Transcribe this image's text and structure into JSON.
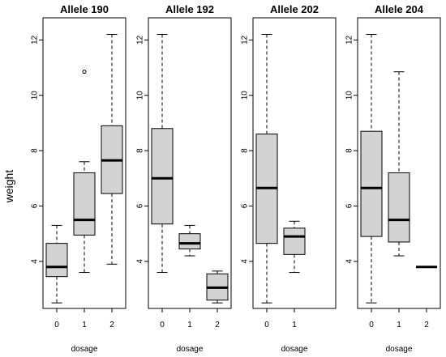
{
  "figure": {
    "ylabel": "weight"
  },
  "chart_data": [
    {
      "type": "boxplot",
      "title": "Allele 190",
      "xlabel": "dosage",
      "ylabel": "weight",
      "ylim": [
        2.3,
        12.8
      ],
      "yticks": [
        4,
        6,
        8,
        10,
        12
      ],
      "categories": [
        "0",
        "1",
        "2"
      ],
      "boxes": [
        {
          "category": "0",
          "min": 2.5,
          "q1": 3.45,
          "median": 3.8,
          "q3": 4.65,
          "max": 5.3,
          "outliers": []
        },
        {
          "category": "1",
          "min": 3.6,
          "q1": 4.95,
          "median": 5.5,
          "q3": 7.2,
          "max": 7.6,
          "outliers": [
            10.85
          ]
        },
        {
          "category": "2",
          "min": 3.9,
          "q1": 6.45,
          "median": 7.65,
          "q3": 8.9,
          "max": 12.2,
          "outliers": []
        }
      ]
    },
    {
      "type": "boxplot",
      "title": "Allele 192",
      "xlabel": "dosage",
      "ylabel": "",
      "ylim": [
        2.3,
        12.8
      ],
      "yticks": [
        4,
        6,
        8,
        10,
        12
      ],
      "categories": [
        "0",
        "1",
        "2"
      ],
      "boxes": [
        {
          "category": "0",
          "min": 3.6,
          "q1": 5.35,
          "median": 7.0,
          "q3": 8.8,
          "max": 12.2,
          "outliers": []
        },
        {
          "category": "1",
          "min": 4.2,
          "q1": 4.45,
          "median": 4.65,
          "q3": 5.0,
          "max": 5.3,
          "outliers": []
        },
        {
          "category": "2",
          "min": 2.5,
          "q1": 2.6,
          "median": 3.05,
          "q3": 3.55,
          "max": 3.65,
          "outliers": []
        }
      ]
    },
    {
      "type": "boxplot",
      "title": "Allele 202",
      "xlabel": "dosage",
      "ylabel": "",
      "ylim": [
        2.3,
        12.8
      ],
      "yticks": [
        4,
        6,
        8,
        10,
        12
      ],
      "categories": [
        "0",
        "1"
      ],
      "boxes": [
        {
          "category": "0",
          "min": 2.5,
          "q1": 4.65,
          "median": 6.65,
          "q3": 8.6,
          "max": 12.2,
          "outliers": []
        },
        {
          "category": "1",
          "min": 3.6,
          "q1": 4.25,
          "median": 4.9,
          "q3": 5.2,
          "max": 5.45,
          "outliers": []
        }
      ]
    },
    {
      "type": "boxplot",
      "title": "Allele 204",
      "xlabel": "dosage",
      "ylabel": "",
      "ylim": [
        2.3,
        12.8
      ],
      "yticks": [
        4,
        6,
        8,
        10,
        12
      ],
      "categories": [
        "0",
        "1",
        "2"
      ],
      "boxes": [
        {
          "category": "0",
          "min": 2.5,
          "q1": 4.9,
          "median": 6.65,
          "q3": 8.7,
          "max": 12.2,
          "outliers": []
        },
        {
          "category": "1",
          "min": 4.2,
          "q1": 4.7,
          "median": 5.5,
          "q3": 7.2,
          "max": 10.85,
          "outliers": []
        },
        {
          "category": "2",
          "min": 3.8,
          "q1": 3.8,
          "median": 3.8,
          "q3": 3.8,
          "max": 3.8,
          "outliers": []
        }
      ]
    }
  ],
  "colors": {
    "box_fill": "#d3d3d3",
    "stroke": "#000000",
    "background": "#ffffff"
  }
}
